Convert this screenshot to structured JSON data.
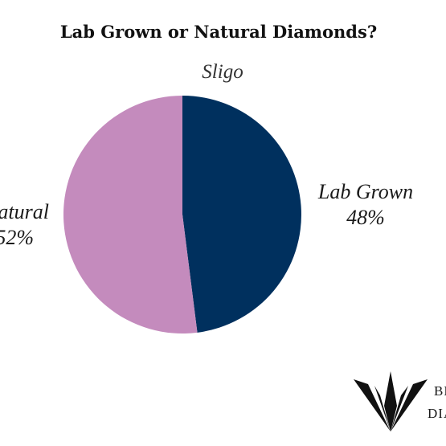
{
  "chart_data": {
    "type": "pie",
    "title": "Lab Grown or Natural Diamonds?",
    "subtitle": "Sligo",
    "slices": [
      {
        "label": "Lab Grown",
        "value": 48,
        "display": "48%",
        "color": "#00305e"
      },
      {
        "label": "Natural",
        "value": 52,
        "display": "52%",
        "color": "#c48bbd"
      }
    ],
    "start": "12 o'clock",
    "direction": "clockwise"
  },
  "logo": {
    "line1": "BE",
    "line2": "DIA",
    "color": "#111111"
  }
}
